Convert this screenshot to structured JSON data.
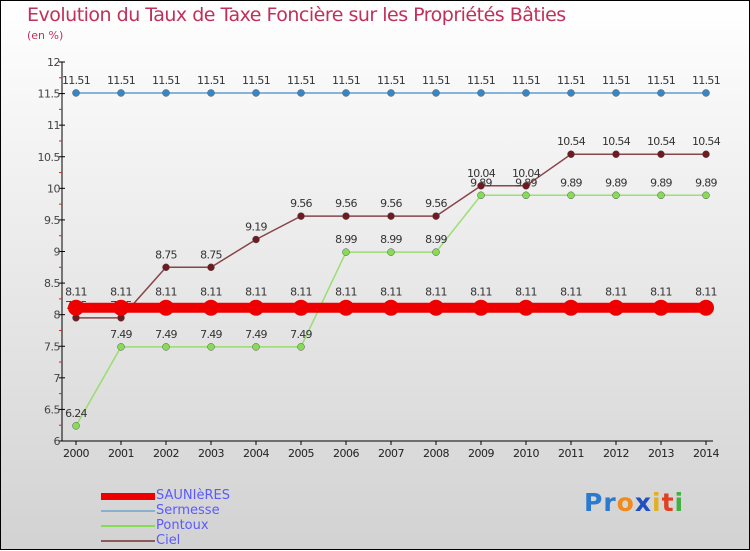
{
  "chart_data": {
    "type": "line",
    "title": "Evolution du Taux de Taxe Foncière sur les Propriétés Bâties",
    "subtitle": "(en %)",
    "xlabel": "",
    "ylabel": "",
    "x": [
      2000,
      2001,
      2002,
      2003,
      2004,
      2005,
      2006,
      2007,
      2008,
      2009,
      2010,
      2011,
      2012,
      2013,
      2014
    ],
    "ylim": [
      6,
      12
    ],
    "yticks": [
      6,
      6.5,
      7,
      7.5,
      8,
      8.5,
      9,
      9.5,
      10,
      10.5,
      11,
      11.5,
      12
    ],
    "legend_position": "bottom-left",
    "series": [
      {
        "name": "SAUNIèRES",
        "color": "#ee0000",
        "values": [
          8.11,
          8.11,
          8.11,
          8.11,
          8.11,
          8.11,
          8.11,
          8.11,
          8.11,
          8.11,
          8.11,
          8.11,
          8.11,
          8.11,
          8.11
        ]
      },
      {
        "name": "Sermesse",
        "color": "#3a86c4",
        "values": [
          11.51,
          11.51,
          11.51,
          11.51,
          11.51,
          11.51,
          11.51,
          11.51,
          11.51,
          11.51,
          11.51,
          11.51,
          11.51,
          11.51,
          11.51
        ]
      },
      {
        "name": "Pontoux",
        "color": "#86dc54",
        "values": [
          6.24,
          7.49,
          7.49,
          7.49,
          7.49,
          7.49,
          8.99,
          8.99,
          8.99,
          9.89,
          9.89,
          9.89,
          9.89,
          9.89,
          9.89
        ]
      },
      {
        "name": "Ciel",
        "color": "#6e1a20",
        "values": [
          7.95,
          7.95,
          8.75,
          8.75,
          9.19,
          9.56,
          9.56,
          9.56,
          9.56,
          10.04,
          10.04,
          10.54,
          10.54,
          10.54,
          10.54
        ]
      }
    ]
  },
  "logo": {
    "text": "Proxiti"
  }
}
